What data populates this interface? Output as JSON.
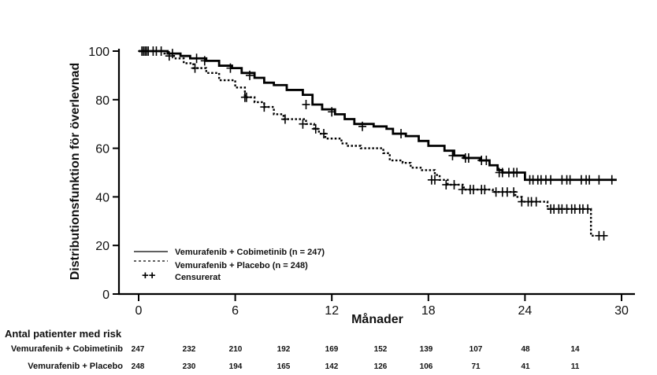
{
  "chart_data": {
    "type": "line",
    "subtype": "kaplan-meier",
    "title": "",
    "xlabel": "Månader",
    "ylabel": "Distributionsfunktion  för  överlevnad",
    "xlim": [
      0,
      30
    ],
    "ylim": [
      0,
      100
    ],
    "xticks": [
      "0",
      "6",
      "12",
      "18",
      "24",
      "30"
    ],
    "yticks": [
      "0",
      "20",
      "40",
      "60",
      "80",
      "100"
    ],
    "grid": false,
    "legend_position": "bottom-left",
    "legend": [
      {
        "label": "Vemurafenib + Cobimetinib (n = 247)",
        "style": "solid"
      },
      {
        "label": "Vemurafenib + Placebo (n = 248)",
        "style": "dotted"
      },
      {
        "label": "Censurerat",
        "style": "marker",
        "symbol": "++"
      }
    ],
    "series": [
      {
        "name": "Vemurafenib + Cobimetinib",
        "style": "solid",
        "steps": [
          [
            0,
            100
          ],
          [
            1.8,
            99
          ],
          [
            2.6,
            98
          ],
          [
            3.2,
            97
          ],
          [
            4.2,
            96
          ],
          [
            5,
            94
          ],
          [
            5.8,
            93
          ],
          [
            6.4,
            91
          ],
          [
            7.2,
            89
          ],
          [
            7.8,
            87
          ],
          [
            8.4,
            86
          ],
          [
            9.2,
            84
          ],
          [
            10.2,
            82
          ],
          [
            10.8,
            78
          ],
          [
            11.4,
            76
          ],
          [
            12.2,
            74
          ],
          [
            12.8,
            72
          ],
          [
            13.4,
            70
          ],
          [
            14.6,
            69
          ],
          [
            15.4,
            68
          ],
          [
            15.8,
            66
          ],
          [
            16.6,
            65
          ],
          [
            17.4,
            63
          ],
          [
            18,
            61
          ],
          [
            19,
            59
          ],
          [
            19.6,
            57
          ],
          [
            20.2,
            56
          ],
          [
            21.2,
            55
          ],
          [
            21.8,
            53
          ],
          [
            22.3,
            51
          ],
          [
            22.6,
            50
          ],
          [
            24,
            47
          ],
          [
            29.7,
            47
          ]
        ],
        "censored": [
          [
            0.2,
            100
          ],
          [
            0.4,
            100
          ],
          [
            0.6,
            100
          ],
          [
            0.9,
            100
          ],
          [
            1.1,
            100
          ],
          [
            1.4,
            100
          ],
          [
            2.1,
            99
          ],
          [
            3.6,
            97
          ],
          [
            4.1,
            96
          ],
          [
            5.7,
            93
          ],
          [
            6.9,
            90
          ],
          [
            10.4,
            78
          ],
          [
            12,
            75
          ],
          [
            13.9,
            69
          ],
          [
            16.3,
            66
          ],
          [
            19.5,
            57
          ],
          [
            20.3,
            56
          ],
          [
            20.5,
            56
          ],
          [
            21.3,
            55
          ],
          [
            21.6,
            55
          ],
          [
            22.4,
            50
          ],
          [
            22.6,
            50
          ],
          [
            23,
            50
          ],
          [
            23.3,
            50
          ],
          [
            23.5,
            50
          ],
          [
            24.3,
            47
          ],
          [
            24.5,
            47
          ],
          [
            24.8,
            47
          ],
          [
            25,
            47
          ],
          [
            25.3,
            47
          ],
          [
            25.6,
            47
          ],
          [
            26.3,
            47
          ],
          [
            26.6,
            47
          ],
          [
            26.8,
            47
          ],
          [
            27.5,
            47
          ],
          [
            27.8,
            47
          ],
          [
            28,
            47
          ],
          [
            28.6,
            47
          ],
          [
            29.4,
            47
          ]
        ]
      },
      {
        "name": "Vemurafenib + Placebo",
        "style": "dotted",
        "steps": [
          [
            0,
            100
          ],
          [
            1.6,
            99
          ],
          [
            2.2,
            97
          ],
          [
            2.8,
            95
          ],
          [
            3.4,
            93
          ],
          [
            4.2,
            91
          ],
          [
            5,
            88
          ],
          [
            6,
            85
          ],
          [
            6.6,
            81
          ],
          [
            7.2,
            79
          ],
          [
            7.8,
            77
          ],
          [
            8.4,
            74
          ],
          [
            9,
            72
          ],
          [
            10.4,
            70
          ],
          [
            10.9,
            68
          ],
          [
            11.2,
            66
          ],
          [
            11.6,
            64
          ],
          [
            12.6,
            62
          ],
          [
            13,
            61
          ],
          [
            13.8,
            60
          ],
          [
            15.2,
            58
          ],
          [
            15.6,
            55
          ],
          [
            16.4,
            54
          ],
          [
            16.9,
            52
          ],
          [
            17.6,
            51
          ],
          [
            18.4,
            49
          ],
          [
            18.7,
            47
          ],
          [
            19.2,
            45
          ],
          [
            20.2,
            43
          ],
          [
            22,
            42
          ],
          [
            23.4,
            40
          ],
          [
            23.8,
            38
          ],
          [
            25.4,
            35
          ],
          [
            28.1,
            35
          ],
          [
            28.1,
            24
          ],
          [
            28.4,
            24
          ]
        ],
        "censored": [
          [
            0.3,
            100
          ],
          [
            0.5,
            100
          ],
          [
            1.9,
            98
          ],
          [
            3.5,
            93
          ],
          [
            6.6,
            81
          ],
          [
            6.7,
            81
          ],
          [
            7.8,
            77
          ],
          [
            9.1,
            72
          ],
          [
            10.2,
            70
          ],
          [
            11,
            68
          ],
          [
            11.5,
            66
          ],
          [
            18.2,
            47
          ],
          [
            18.4,
            47
          ],
          [
            19.1,
            45
          ],
          [
            19.6,
            45
          ],
          [
            20.1,
            43
          ],
          [
            20.6,
            43
          ],
          [
            20.8,
            43
          ],
          [
            21.3,
            43
          ],
          [
            21.5,
            43
          ],
          [
            22.2,
            42
          ],
          [
            22.6,
            42
          ],
          [
            22.9,
            42
          ],
          [
            23.3,
            42
          ],
          [
            23.8,
            38
          ],
          [
            24.2,
            38
          ],
          [
            24.4,
            38
          ],
          [
            24.7,
            38
          ],
          [
            25.6,
            35
          ],
          [
            25.8,
            35
          ],
          [
            26.1,
            35
          ],
          [
            26.3,
            35
          ],
          [
            26.6,
            35
          ],
          [
            26.9,
            35
          ],
          [
            27.1,
            35
          ],
          [
            27.4,
            35
          ],
          [
            27.6,
            35
          ],
          [
            27.9,
            35
          ],
          [
            28.6,
            24
          ],
          [
            28.9,
            24
          ]
        ]
      }
    ],
    "risk_table": {
      "title": "Antal patienter med risk",
      "timepoints": [
        0,
        3,
        6,
        9,
        12,
        15,
        18,
        21,
        24,
        27
      ],
      "rows": [
        {
          "label": "Vemurafenib + Cobimetinib",
          "values": [
            "247",
            "232",
            "210",
            "192",
            "169",
            "152",
            "139",
            "107",
            "48",
            "14"
          ]
        },
        {
          "label": "Vemurafenib + Placebo",
          "values": [
            "248",
            "230",
            "194",
            "165",
            "142",
            "126",
            "106",
            "71",
            "41",
            "11"
          ]
        }
      ]
    }
  },
  "colors": {
    "line": "#000000",
    "background": "#ffffff"
  }
}
